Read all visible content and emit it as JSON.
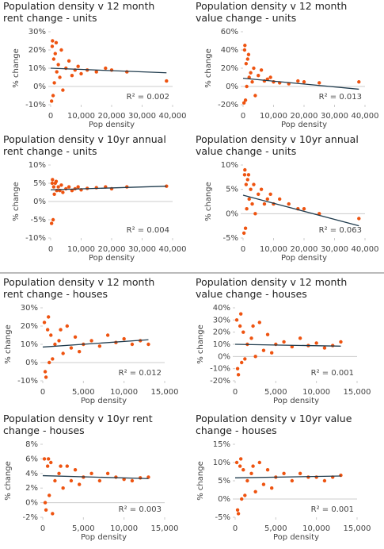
{
  "chart_data": [
    {
      "type": "scatter",
      "title": "Population density v 12 month rent change - units",
      "xlabel": "Pop density",
      "ylabel": "% change",
      "annotation": "R² = 0.002",
      "xlim": [
        0,
        40000
      ],
      "xticks": [
        0,
        {
          "value": 10000,
          "label": "10,000"
        },
        {
          "value": 20000,
          "label": "20,000"
        },
        {
          "value": 30000,
          "label": "30,000"
        },
        {
          "value": 40000,
          "label": "40,000"
        }
      ],
      "ylim": [
        -10,
        30
      ],
      "yticks": [
        {
          "value": -10,
          "label": "-10%"
        },
        {
          "value": 0,
          "label": "0%"
        },
        {
          "value": 10,
          "label": "10%"
        },
        {
          "value": 20,
          "label": "20%"
        },
        {
          "value": 30,
          "label": "30%"
        }
      ],
      "color": "#ee5310",
      "trend_color": "#1f3b4d",
      "trendline": {
        "x": [
          0,
          38000
        ],
        "y": [
          10,
          7.5
        ]
      },
      "x": [
        500,
        800,
        1000,
        1200,
        1500,
        2000,
        2500,
        3000,
        3500,
        4000,
        5000,
        6000,
        7000,
        8000,
        9000,
        10000,
        12000,
        15000,
        18000,
        20000,
        25000,
        38000,
        300,
        600,
        1800
      ],
      "y": [
        22,
        -5,
        15,
        2,
        18,
        8,
        12,
        5,
        20,
        -2,
        10,
        14,
        6,
        9,
        11,
        7,
        9,
        8,
        10,
        9,
        8,
        3,
        -8,
        25,
        24
      ]
    },
    {
      "type": "scatter",
      "title": "Population density v 12 month value change - units",
      "xlabel": "Pop density",
      "ylabel": "% change",
      "annotation": "R² = 0.013",
      "xlim": [
        0,
        40000
      ],
      "xticks": [
        0,
        {
          "value": 10000,
          "label": "10,000"
        },
        {
          "value": 20000,
          "label": "20,000"
        },
        {
          "value": 30000,
          "label": "30,000"
        },
        {
          "value": 40000,
          "label": "40,000"
        }
      ],
      "ylim": [
        -20,
        60
      ],
      "yticks": [
        {
          "value": -20,
          "label": "-20%"
        },
        {
          "value": 0,
          "label": "0%"
        },
        {
          "value": 20,
          "label": "20%"
        },
        {
          "value": 40,
          "label": "40%"
        },
        {
          "value": 60,
          "label": "60%"
        }
      ],
      "color": "#ee5310",
      "trend_color": "#1f3b4d",
      "trendline": {
        "x": [
          0,
          38000
        ],
        "y": [
          9,
          -3
        ]
      },
      "x": [
        500,
        800,
        1000,
        1200,
        1500,
        2000,
        2500,
        3000,
        3500,
        4000,
        5000,
        6000,
        7000,
        8000,
        9000,
        10000,
        12000,
        15000,
        18000,
        20000,
        25000,
        38000,
        300,
        600,
        1800
      ],
      "y": [
        40,
        -15,
        25,
        0,
        30,
        10,
        15,
        5,
        20,
        -10,
        12,
        18,
        6,
        8,
        10,
        5,
        4,
        3,
        6,
        5,
        4,
        5,
        -18,
        45,
        35
      ]
    },
    {
      "type": "scatter",
      "title": "Population density v 10yr annual rent change - units",
      "xlabel": "Pop density",
      "ylabel": "% change",
      "annotation": "R² = 0.004",
      "xlim": [
        0,
        40000
      ],
      "xticks": [
        0,
        {
          "value": 10000,
          "label": "10,000"
        },
        {
          "value": 20000,
          "label": "20,000"
        },
        {
          "value": 30000,
          "label": "30,000"
        },
        {
          "value": 40000,
          "label": "40,000"
        }
      ],
      "ylim": [
        -10,
        10
      ],
      "yticks": [
        {
          "value": -10,
          "label": "-10%"
        },
        {
          "value": -5,
          "label": "-5%"
        },
        {
          "value": 0,
          "label": "0%"
        },
        {
          "value": 5,
          "label": "5%"
        },
        {
          "value": 10,
          "label": "10%"
        }
      ],
      "color": "#ee5310",
      "trend_color": "#1f3b4d",
      "trendline": {
        "x": [
          0,
          38000
        ],
        "y": [
          3.2,
          4.2
        ]
      },
      "x": [
        500,
        800,
        1000,
        1200,
        1500,
        2000,
        2500,
        3000,
        3500,
        4000,
        5000,
        6000,
        7000,
        8000,
        9000,
        10000,
        12000,
        15000,
        18000,
        20000,
        25000,
        38000,
        300,
        600,
        1800
      ],
      "y": [
        5,
        -5,
        4,
        2,
        5,
        3,
        4,
        3,
        4.5,
        2.5,
        3.5,
        4,
        3,
        3.5,
        4,
        3.2,
        3.6,
        3.8,
        4,
        3.5,
        4,
        4.2,
        -6,
        6,
        5.5
      ]
    },
    {
      "type": "scatter",
      "title": "Population density v 10yr annual value change - units",
      "xlabel": "Pop density",
      "ylabel": "% change",
      "annotation": "R² = 0.063",
      "xlim": [
        0,
        40000
      ],
      "xticks": [
        0,
        {
          "value": 10000,
          "label": "10,000"
        },
        {
          "value": 20000,
          "label": "20,000"
        },
        {
          "value": 30000,
          "label": "30,000"
        },
        {
          "value": 40000,
          "label": "40,000"
        }
      ],
      "ylim": [
        -5,
        10
      ],
      "yticks": [
        {
          "value": -5,
          "label": "-5%"
        },
        {
          "value": 0,
          "label": "0%"
        },
        {
          "value": 5,
          "label": "5%"
        },
        {
          "value": 10,
          "label": "10%"
        }
      ],
      "color": "#ee5310",
      "trend_color": "#1f3b4d",
      "trendline": {
        "x": [
          0,
          38000
        ],
        "y": [
          3.8,
          -2.5
        ]
      },
      "x": [
        500,
        800,
        1000,
        1200,
        1500,
        2000,
        2500,
        3000,
        3500,
        4000,
        5000,
        6000,
        7000,
        8000,
        9000,
        10000,
        12000,
        15000,
        18000,
        20000,
        25000,
        38000,
        300,
        600,
        1800
      ],
      "y": [
        8,
        -3,
        6,
        1,
        7,
        3,
        5,
        2,
        6,
        0,
        4,
        5,
        2,
        3,
        4,
        2,
        3,
        2,
        1,
        1,
        0,
        -1,
        -4,
        9,
        8
      ]
    },
    {
      "type": "scatter",
      "title": "Population density v 12 month rent change - houses",
      "xlabel": "Pop density",
      "ylabel": "% change",
      "annotation": "R² = 0.012",
      "xlim": [
        0,
        15000
      ],
      "xticks": [
        0,
        {
          "value": 5000,
          "label": "5,000"
        },
        {
          "value": 10000,
          "label": "10,000"
        },
        {
          "value": 15000,
          "label": "15,000"
        }
      ],
      "ylim": [
        -10,
        30
      ],
      "yticks": [
        {
          "value": -10,
          "label": "-10%"
        },
        {
          "value": 0,
          "label": "0%"
        },
        {
          "value": 10,
          "label": "10%"
        },
        {
          "value": 20,
          "label": "20%"
        },
        {
          "value": 30,
          "label": "30%"
        }
      ],
      "color": "#ee5310",
      "trend_color": "#1f3b4d",
      "trendline": {
        "x": [
          0,
          13000
        ],
        "y": [
          8.5,
          12.5
        ]
      },
      "x": [
        200,
        400,
        600,
        800,
        1000,
        1500,
        2000,
        2500,
        3000,
        3500,
        4000,
        5000,
        6000,
        7000,
        8000,
        9000,
        10000,
        11000,
        12000,
        13000,
        300,
        700,
        1200,
        2200,
        4500
      ],
      "y": [
        22,
        -8,
        18,
        0,
        15,
        10,
        12,
        5,
        20,
        8,
        14,
        10,
        12,
        9,
        15,
        11,
        13,
        10,
        12,
        10,
        -5,
        25,
        2,
        18,
        6
      ]
    },
    {
      "type": "scatter",
      "title": "Population density v 12 month value change - houses",
      "xlabel": "Pop density",
      "ylabel": "% change",
      "annotation": "R² = 0.001",
      "xlim": [
        0,
        15000
      ],
      "xticks": [
        0,
        {
          "value": 5000,
          "label": "5,000"
        },
        {
          "value": 10000,
          "label": "10,000"
        },
        {
          "value": 15000,
          "label": "15,000"
        }
      ],
      "ylim": [
        -20,
        40
      ],
      "yticks": [
        {
          "value": -20,
          "label": "-20%"
        },
        {
          "value": -10,
          "label": "-10%"
        },
        {
          "value": 0,
          "label": "0%"
        },
        {
          "value": 10,
          "label": "10%"
        },
        {
          "value": 20,
          "label": "20%"
        },
        {
          "value": 30,
          "label": "30%"
        },
        {
          "value": 40,
          "label": "40%"
        }
      ],
      "color": "#ee5310",
      "trend_color": "#1f3b4d",
      "trendline": {
        "x": [
          0,
          13000
        ],
        "y": [
          10,
          8.5
        ]
      },
      "x": [
        200,
        400,
        600,
        800,
        1000,
        1500,
        2000,
        2500,
        3000,
        3500,
        4000,
        5000,
        6000,
        7000,
        8000,
        9000,
        10000,
        11000,
        12000,
        13000,
        300,
        700,
        1200,
        2200,
        4500
      ],
      "y": [
        30,
        -15,
        25,
        -5,
        20,
        10,
        15,
        0,
        28,
        5,
        18,
        10,
        12,
        8,
        15,
        9,
        11,
        7,
        9,
        12,
        -10,
        35,
        -2,
        25,
        3
      ]
    },
    {
      "type": "scatter",
      "title": "Population density v 10yr rent change - houses",
      "xlabel": "Pop density",
      "ylabel": "% change",
      "annotation": "R² = 0.003",
      "xlim": [
        0,
        15000
      ],
      "xticks": [
        0,
        {
          "value": 5000,
          "label": "5,000"
        },
        {
          "value": 10000,
          "label": "10,000"
        },
        {
          "value": 15000,
          "label": "15,000"
        }
      ],
      "ylim": [
        -2,
        8
      ],
      "yticks": [
        {
          "value": -2,
          "label": "-2%"
        },
        {
          "value": 0,
          "label": "0%"
        },
        {
          "value": 2,
          "label": "2%"
        },
        {
          "value": 4,
          "label": "4%"
        },
        {
          "value": 6,
          "label": "6%"
        },
        {
          "value": 8,
          "label": "8%"
        }
      ],
      "color": "#ee5310",
      "trend_color": "#1f3b4d",
      "trendline": {
        "x": [
          0,
          13000
        ],
        "y": [
          3.7,
          3.3
        ]
      },
      "x": [
        200,
        400,
        600,
        800,
        1000,
        1500,
        2000,
        2500,
        3000,
        3500,
        4000,
        5000,
        6000,
        7000,
        8000,
        9000,
        10000,
        11000,
        12000,
        13000,
        300,
        700,
        1200,
        2200,
        4500
      ],
      "y": [
        6,
        -1,
        5,
        1,
        5.5,
        3,
        4,
        2,
        5,
        3,
        4.5,
        3.5,
        4,
        3,
        4,
        3.5,
        3.2,
        3,
        3.4,
        3.5,
        0,
        6,
        -1.5,
        5,
        2.5
      ]
    },
    {
      "type": "scatter",
      "title": "Population density v 10yr value change - houses",
      "xlabel": "Pop density",
      "ylabel": "% change",
      "annotation": "R² = 0.001",
      "xlim": [
        0,
        15000
      ],
      "xticks": [
        0,
        {
          "value": 5000,
          "label": "5,000"
        },
        {
          "value": 10000,
          "label": "10,000"
        },
        {
          "value": 15000,
          "label": "15,000"
        }
      ],
      "ylim": [
        -5,
        15
      ],
      "yticks": [
        {
          "value": -5,
          "label": "-5%"
        },
        {
          "value": 0,
          "label": "0%"
        },
        {
          "value": 5,
          "label": "5%"
        },
        {
          "value": 10,
          "label": "10%"
        },
        {
          "value": 15,
          "label": "15%"
        }
      ],
      "color": "#ee5310",
      "trend_color": "#1f3b4d",
      "trendline": {
        "x": [
          0,
          13000
        ],
        "y": [
          5.8,
          6.3
        ]
      },
      "x": [
        200,
        400,
        600,
        800,
        1000,
        1500,
        2000,
        2500,
        3000,
        3500,
        4000,
        5000,
        6000,
        7000,
        8000,
        9000,
        10000,
        11000,
        12000,
        13000,
        300,
        700,
        1200,
        2200,
        4500
      ],
      "y": [
        10,
        -4,
        9,
        0,
        8,
        5,
        7,
        2,
        10,
        4,
        8,
        6,
        7,
        5,
        7,
        6,
        6,
        5,
        6,
        6.5,
        -3,
        11,
        1,
        9,
        3
      ]
    }
  ]
}
